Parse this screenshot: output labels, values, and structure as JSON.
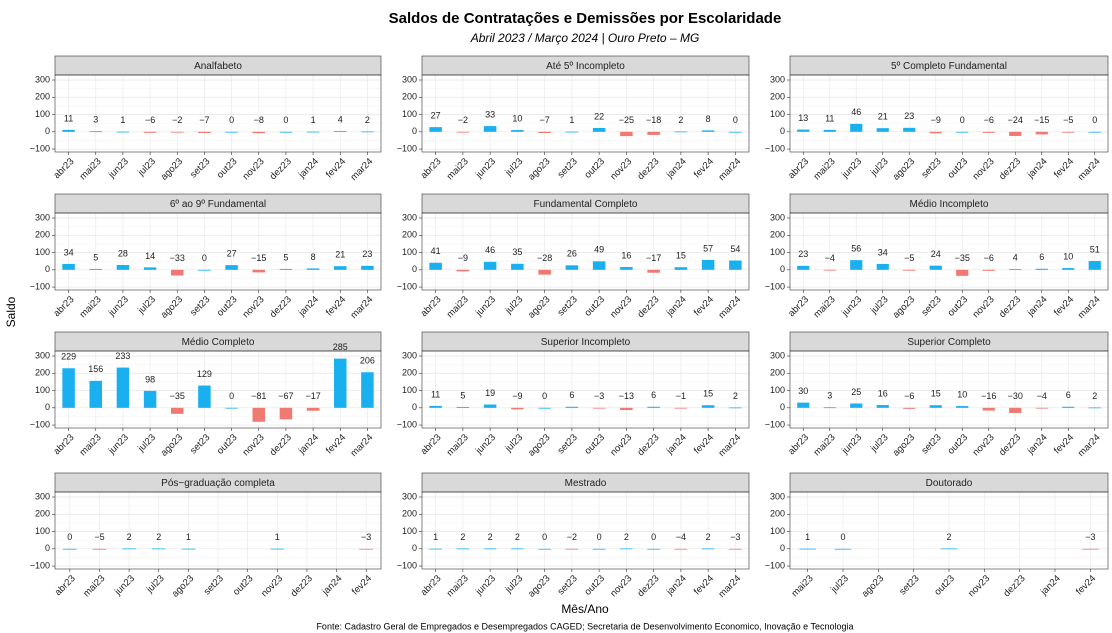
{
  "title": "Saldos de Contratações e Demissões por Escolaridade",
  "subtitle": "Abril 2023 / Março 2024 | Ouro Preto – MG",
  "x_label": "Mês/Ano",
  "y_label": "Saldo",
  "caption": "Fonte: Cadastro Geral de Empregados e Desempregados CAGED; Secretaria de Desenvolvimento Economico, Inovação e Tecnologia",
  "colors": {
    "positive": "#1AB0F0",
    "negative": "#F07A72"
  },
  "chart_data": [
    {
      "type": "bar",
      "title": "Analfabeto",
      "categories": [
        "abr23",
        "mai23",
        "jun23",
        "jul23",
        "ago23",
        "set23",
        "out23",
        "nov23",
        "dez23",
        "jan24",
        "fev24",
        "mar24"
      ],
      "values": [
        11,
        3,
        1,
        -6,
        -2,
        -7,
        0,
        -8,
        0,
        1,
        4,
        2
      ],
      "value_labels": [
        "11",
        "3",
        "1",
        "−6",
        "−2",
        "−7",
        "0",
        "−8",
        "0",
        "1",
        "4",
        "2"
      ],
      "ylim": [
        -117,
        329
      ],
      "yticks": [
        {
          "value": -100,
          "label": "−100"
        },
        0,
        100,
        200,
        300
      ],
      "grid": true
    },
    {
      "type": "bar",
      "title": "Até 5º Incompleto",
      "categories": [
        "abr23",
        "mai23",
        "jun23",
        "jul23",
        "ago23",
        "set23",
        "out23",
        "nov23",
        "dez23",
        "jan24",
        "fev24",
        "mar24"
      ],
      "values": [
        27,
        -2,
        33,
        10,
        -7,
        1,
        22,
        -25,
        -18,
        2,
        8,
        0
      ],
      "value_labels": [
        "27",
        "−2",
        "33",
        "10",
        "−7",
        "1",
        "22",
        "−25",
        "−18",
        "2",
        "8",
        "0"
      ],
      "ylim": [
        -117,
        329
      ],
      "yticks": [
        {
          "value": -100,
          "label": "−100"
        },
        0,
        100,
        200,
        300
      ],
      "grid": true
    },
    {
      "type": "bar",
      "title": "5º Completo Fundamental",
      "categories": [
        "abr23",
        "mai23",
        "jun23",
        "jul23",
        "ago23",
        "set23",
        "out23",
        "nov23",
        "dez23",
        "jan24",
        "fev24",
        "mar24"
      ],
      "values": [
        13,
        11,
        46,
        21,
        23,
        -9,
        0,
        -6,
        -24,
        -15,
        -5,
        0
      ],
      "value_labels": [
        "13",
        "11",
        "46",
        "21",
        "23",
        "−9",
        "0",
        "−6",
        "−24",
        "−15",
        "−5",
        "0"
      ],
      "ylim": [
        -117,
        329
      ],
      "yticks": [
        {
          "value": -100,
          "label": "−100"
        },
        0,
        100,
        200,
        300
      ],
      "grid": true
    },
    {
      "type": "bar",
      "title": "6º ao 9º Fundamental",
      "categories": [
        "abr23",
        "mai23",
        "jun23",
        "jul23",
        "ago23",
        "set23",
        "out23",
        "nov23",
        "dez23",
        "jan24",
        "fev24",
        "mar24"
      ],
      "values": [
        34,
        5,
        28,
        14,
        -33,
        0,
        27,
        -15,
        5,
        8,
        21,
        23
      ],
      "value_labels": [
        "34",
        "5",
        "28",
        "14",
        "−33",
        "0",
        "27",
        "−15",
        "5",
        "8",
        "21",
        "23"
      ],
      "ylim": [
        -117,
        329
      ],
      "yticks": [
        {
          "value": -100,
          "label": "−100"
        },
        0,
        100,
        200,
        300
      ],
      "grid": true
    },
    {
      "type": "bar",
      "title": "Fundamental Completo",
      "categories": [
        "abr23",
        "mai23",
        "jun23",
        "jul23",
        "ago23",
        "set23",
        "out23",
        "nov23",
        "dez23",
        "jan24",
        "fev24",
        "mar24"
      ],
      "values": [
        41,
        -9,
        46,
        35,
        -28,
        26,
        49,
        16,
        -17,
        15,
        57,
        54
      ],
      "value_labels": [
        "41",
        "−9",
        "46",
        "35",
        "−28",
        "26",
        "49",
        "16",
        "−17",
        "15",
        "57",
        "54"
      ],
      "ylim": [
        -117,
        329
      ],
      "yticks": [
        {
          "value": -100,
          "label": "−100"
        },
        0,
        100,
        200,
        300
      ],
      "grid": true
    },
    {
      "type": "bar",
      "title": "Médio Incompleto",
      "categories": [
        "abr23",
        "mai23",
        "jun23",
        "jul23",
        "ago23",
        "set23",
        "out23",
        "nov23",
        "dez23",
        "jan24",
        "fev24",
        "mar24"
      ],
      "values": [
        23,
        -4,
        56,
        34,
        -5,
        24,
        -35,
        -6,
        4,
        6,
        10,
        51
      ],
      "value_labels": [
        "23",
        "−4",
        "56",
        "34",
        "−5",
        "24",
        "−35",
        "−6",
        "4",
        "6",
        "10",
        "51"
      ],
      "ylim": [
        -117,
        329
      ],
      "yticks": [
        {
          "value": -100,
          "label": "−100"
        },
        0,
        100,
        200,
        300
      ],
      "grid": true
    },
    {
      "type": "bar",
      "title": "Médio Completo",
      "categories": [
        "abr23",
        "mai23",
        "jun23",
        "jul23",
        "ago23",
        "set23",
        "out23",
        "nov23",
        "dez23",
        "jan24",
        "fev24",
        "mar24"
      ],
      "values": [
        229,
        156,
        233,
        98,
        -35,
        129,
        0,
        -81,
        -67,
        -17,
        285,
        206
      ],
      "value_labels": [
        "229",
        "156",
        "233",
        "98",
        "−35",
        "129",
        "0",
        "−81",
        "−67",
        "−17",
        "285",
        "206"
      ],
      "ylim": [
        -117,
        329
      ],
      "yticks": [
        {
          "value": -100,
          "label": "−100"
        },
        0,
        100,
        200,
        300
      ],
      "grid": true
    },
    {
      "type": "bar",
      "title": "Superior Incompleto",
      "categories": [
        "abr23",
        "mai23",
        "jun23",
        "jul23",
        "ago23",
        "set23",
        "out23",
        "nov23",
        "dez23",
        "jan24",
        "fev24",
        "mar24"
      ],
      "values": [
        11,
        5,
        19,
        -9,
        0,
        6,
        -3,
        -13,
        6,
        -1,
        15,
        2
      ],
      "value_labels": [
        "11",
        "5",
        "19",
        "−9",
        "0",
        "6",
        "−3",
        "−13",
        "6",
        "−1",
        "15",
        "2"
      ],
      "ylim": [
        -117,
        329
      ],
      "yticks": [
        {
          "value": -100,
          "label": "−100"
        },
        0,
        100,
        200,
        300
      ],
      "grid": true
    },
    {
      "type": "bar",
      "title": "Superior Completo",
      "categories": [
        "abr23",
        "mai23",
        "jun23",
        "jul23",
        "ago23",
        "set23",
        "out23",
        "nov23",
        "dez23",
        "jan24",
        "fev24",
        "mar24"
      ],
      "values": [
        30,
        3,
        25,
        16,
        -6,
        15,
        10,
        -16,
        -30,
        -4,
        6,
        2
      ],
      "value_labels": [
        "30",
        "3",
        "25",
        "16",
        "−6",
        "15",
        "10",
        "−16",
        "−30",
        "−4",
        "6",
        "2"
      ],
      "ylim": [
        -117,
        329
      ],
      "yticks": [
        {
          "value": -100,
          "label": "−100"
        },
        0,
        100,
        200,
        300
      ],
      "grid": true
    },
    {
      "type": "bar",
      "title": "Pós−graduação completa",
      "categories": [
        "abr23",
        "mai23",
        "jun23",
        "jul23",
        "ago23",
        "set23",
        "out23",
        "nov23",
        "dez23",
        "jan24",
        "fev24"
      ],
      "values": [
        0,
        -5,
        2,
        2,
        1,
        null,
        null,
        1,
        null,
        null,
        -3
      ],
      "value_labels": [
        "0",
        "−5",
        "2",
        "2",
        "1",
        null,
        null,
        "1",
        null,
        null,
        "−3"
      ],
      "ylim": [
        -117,
        329
      ],
      "yticks": [
        {
          "value": -100,
          "label": "−100"
        },
        0,
        100,
        200,
        300
      ],
      "grid": true
    },
    {
      "type": "bar",
      "title": "Mestrado",
      "categories": [
        "abr23",
        "mai23",
        "jun23",
        "jul23",
        "ago23",
        "set23",
        "out23",
        "nov23",
        "dez23",
        "jan24",
        "fev24",
        "mar24"
      ],
      "values": [
        1,
        2,
        2,
        2,
        0,
        -2,
        0,
        2,
        0,
        -4,
        2,
        -3
      ],
      "value_labels": [
        "1",
        "2",
        "2",
        "2",
        "0",
        "−2",
        "0",
        "2",
        "0",
        "−4",
        "2",
        "−3"
      ],
      "ylim": [
        -117,
        329
      ],
      "yticks": [
        {
          "value": -100,
          "label": "−100"
        },
        0,
        100,
        200,
        300
      ],
      "grid": true
    },
    {
      "type": "bar",
      "title": "Doutorado",
      "categories": [
        "mai23",
        "jul23",
        "ago23",
        "set23",
        "out23",
        "nov23",
        "dez23",
        "jan24",
        "fev24"
      ],
      "values": [
        1,
        0,
        null,
        null,
        2,
        null,
        null,
        null,
        -3
      ],
      "value_labels": [
        "1",
        "0",
        null,
        null,
        "2",
        null,
        null,
        null,
        "−3"
      ],
      "ylim": [
        -117,
        329
      ],
      "yticks": [
        {
          "value": -100,
          "label": "−100"
        },
        0,
        100,
        200,
        300
      ],
      "grid": true
    }
  ]
}
